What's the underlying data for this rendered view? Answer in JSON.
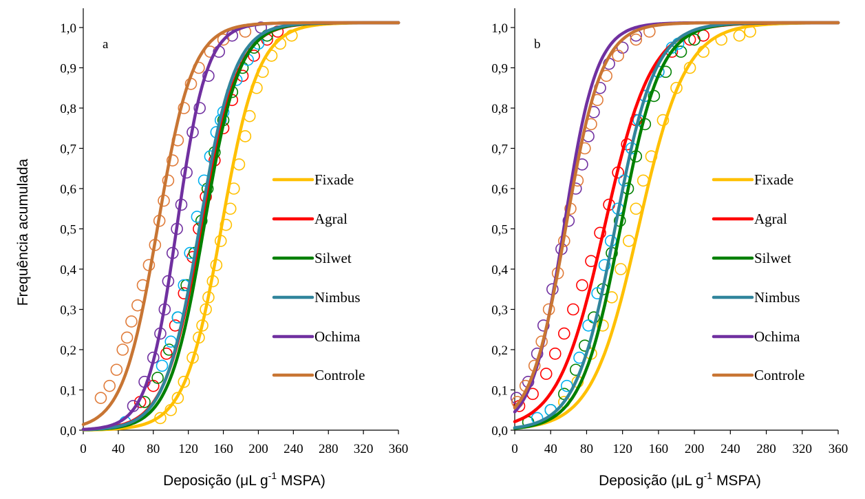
{
  "chart_data": [
    {
      "type": "scatter",
      "panel_label": "a",
      "xlabel": "Deposição (μL g-1 MSPA)",
      "xlabel_parts": [
        "Deposição (μL g",
        "-1",
        " MSPA)"
      ],
      "ylabel": "Frequência acumulada",
      "xlim": [
        0,
        360
      ],
      "ylim": [
        0,
        1.0
      ],
      "xticks": [
        "0",
        "40",
        "80",
        "120",
        "160",
        "200",
        "240",
        "280",
        "320",
        "360"
      ],
      "yticks": [
        "0,0",
        "0,1",
        "0,2",
        "0,3",
        "0,4",
        "0,5",
        "0,6",
        "0,7",
        "0,8",
        "0,9",
        "1,0"
      ],
      "grid": false,
      "legend_placement": "center-right",
      "series": [
        {
          "name": "Fixade",
          "color": "#FFC000",
          "marker_color": "#FFC000",
          "center": 158,
          "scale": 21,
          "points": [
            [
              88,
              0.03
            ],
            [
              100,
              0.05
            ],
            [
              108,
              0.08
            ],
            [
              115,
              0.12
            ],
            [
              125,
              0.18
            ],
            [
              132,
              0.23
            ],
            [
              136,
              0.26
            ],
            [
              140,
              0.3
            ],
            [
              143,
              0.33
            ],
            [
              148,
              0.37
            ],
            [
              152,
              0.41
            ],
            [
              157,
              0.47
            ],
            [
              163,
              0.51
            ],
            [
              168,
              0.55
            ],
            [
              172,
              0.6
            ],
            [
              178,
              0.66
            ],
            [
              185,
              0.73
            ],
            [
              190,
              0.78
            ],
            [
              198,
              0.85
            ],
            [
              205,
              0.89
            ],
            [
              215,
              0.93
            ],
            [
              225,
              0.96
            ],
            [
              238,
              0.98
            ]
          ]
        },
        {
          "name": "Agral",
          "color": "#FF0000",
          "marker_color": "#FF0000",
          "center": 135,
          "scale": 21,
          "points": [
            [
              65,
              0.07
            ],
            [
              80,
              0.11
            ],
            [
              95,
              0.19
            ],
            [
              105,
              0.26
            ],
            [
              115,
              0.34
            ],
            [
              125,
              0.43
            ],
            [
              132,
              0.5
            ],
            [
              140,
              0.58
            ],
            [
              150,
              0.67
            ],
            [
              160,
              0.75
            ],
            [
              170,
              0.82
            ],
            [
              182,
              0.88
            ],
            [
              195,
              0.93
            ],
            [
              210,
              0.97
            ],
            [
              222,
              0.99
            ]
          ]
        },
        {
          "name": "Silwet",
          "color": "#008000",
          "marker_color": "#008000",
          "center": 138,
          "scale": 20,
          "points": [
            [
              70,
              0.07
            ],
            [
              85,
              0.13
            ],
            [
              98,
              0.2
            ],
            [
              108,
              0.28
            ],
            [
              118,
              0.36
            ],
            [
              127,
              0.44
            ],
            [
              135,
              0.52
            ],
            [
              142,
              0.6
            ],
            [
              150,
              0.69
            ],
            [
              160,
              0.77
            ],
            [
              170,
              0.84
            ],
            [
              182,
              0.9
            ],
            [
              195,
              0.95
            ],
            [
              210,
              0.98
            ]
          ]
        },
        {
          "name": "Nimbus",
          "color": "#31859C",
          "marker_color": "#00B0F0",
          "center": 133,
          "scale": 20,
          "points": [
            [
              48,
              0.02
            ],
            [
              90,
              0.16
            ],
            [
              100,
              0.22
            ],
            [
              108,
              0.28
            ],
            [
              115,
              0.36
            ],
            [
              122,
              0.44
            ],
            [
              130,
              0.53
            ],
            [
              138,
              0.62
            ],
            [
              145,
              0.68
            ],
            [
              152,
              0.74
            ],
            [
              157,
              0.77
            ],
            [
              160,
              0.79
            ],
            [
              175,
              0.87
            ],
            [
              188,
              0.92
            ],
            [
              200,
              0.96
            ]
          ]
        },
        {
          "name": "Ochima",
          "color": "#7030A0",
          "marker_color": "#7030A0",
          "center": 107,
          "scale": 17,
          "points": [
            [
              57,
              0.06
            ],
            [
              70,
              0.12
            ],
            [
              80,
              0.18
            ],
            [
              88,
              0.24
            ],
            [
              93,
              0.3
            ],
            [
              97,
              0.37
            ],
            [
              102,
              0.44
            ],
            [
              107,
              0.5
            ],
            [
              112,
              0.56
            ],
            [
              118,
              0.64
            ],
            [
              125,
              0.74
            ],
            [
              133,
              0.8
            ],
            [
              143,
              0.88
            ],
            [
              155,
              0.94
            ],
            [
              170,
              0.98
            ],
            [
              203,
              1.0
            ]
          ]
        },
        {
          "name": "Controle",
          "color": "#C87533",
          "marker_color": "#E07B39",
          "center": 85,
          "scale": 20,
          "points": [
            [
              20,
              0.08
            ],
            [
              30,
              0.11
            ],
            [
              38,
              0.15
            ],
            [
              45,
              0.2
            ],
            [
              50,
              0.23
            ],
            [
              55,
              0.27
            ],
            [
              62,
              0.31
            ],
            [
              68,
              0.36
            ],
            [
              75,
              0.41
            ],
            [
              82,
              0.46
            ],
            [
              87,
              0.52
            ],
            [
              92,
              0.57
            ],
            [
              97,
              0.62
            ],
            [
              102,
              0.67
            ],
            [
              108,
              0.72
            ],
            [
              115,
              0.8
            ],
            [
              123,
              0.86
            ],
            [
              132,
              0.9
            ],
            [
              145,
              0.94
            ],
            [
              160,
              0.97
            ],
            [
              185,
              0.99
            ]
          ]
        }
      ]
    },
    {
      "type": "scatter",
      "panel_label": "b",
      "xlabel": "Deposição (μL g-1 MSPA)",
      "xlabel_parts": [
        "Deposição (μL g",
        "-1",
        " MSPA)"
      ],
      "ylabel": "",
      "xlim": [
        0,
        360
      ],
      "ylim": [
        0,
        1.0
      ],
      "xticks": [
        "0",
        "40",
        "80",
        "120",
        "160",
        "200",
        "240",
        "280",
        "320",
        "360"
      ],
      "yticks": [
        "0,0",
        "0,1",
        "0,2",
        "0,3",
        "0,4",
        "0,5",
        "0,6",
        "0,7",
        "0,8",
        "0,9",
        "1,0"
      ],
      "grid": false,
      "legend_placement": "center-right",
      "series": [
        {
          "name": "Fixade",
          "color": "#FFC000",
          "marker_color": "#FFC000",
          "center": 138,
          "scale": 26,
          "points": [
            [
              55,
              0.07
            ],
            [
              70,
              0.12
            ],
            [
              85,
              0.19
            ],
            [
              98,
              0.26
            ],
            [
              108,
              0.33
            ],
            [
              118,
              0.4
            ],
            [
              127,
              0.47
            ],
            [
              135,
              0.55
            ],
            [
              143,
              0.62
            ],
            [
              152,
              0.68
            ],
            [
              165,
              0.77
            ],
            [
              180,
              0.85
            ],
            [
              195,
              0.9
            ],
            [
              210,
              0.94
            ],
            [
              230,
              0.97
            ],
            [
              250,
              0.98
            ],
            [
              262,
              0.99
            ]
          ]
        },
        {
          "name": "Agral",
          "color": "#FF0000",
          "marker_color": "#FF0000",
          "center": 100,
          "scale": 26,
          "points": [
            [
              5,
              0.06
            ],
            [
              20,
              0.09
            ],
            [
              35,
              0.14
            ],
            [
              45,
              0.19
            ],
            [
              55,
              0.24
            ],
            [
              65,
              0.3
            ],
            [
              75,
              0.36
            ],
            [
              85,
              0.42
            ],
            [
              95,
              0.49
            ],
            [
              105,
              0.56
            ],
            [
              115,
              0.64
            ],
            [
              125,
              0.71
            ],
            [
              135,
              0.77
            ],
            [
              145,
              0.83
            ],
            [
              160,
              0.89
            ],
            [
              175,
              0.94
            ],
            [
              195,
              0.97
            ],
            [
              210,
              0.98
            ]
          ]
        },
        {
          "name": "Silwet",
          "color": "#008000",
          "marker_color": "#008000",
          "center": 118,
          "scale": 22,
          "points": [
            [
              15,
              0.02
            ],
            [
              40,
              0.05
            ],
            [
              55,
              0.09
            ],
            [
              68,
              0.15
            ],
            [
              78,
              0.21
            ],
            [
              88,
              0.28
            ],
            [
              98,
              0.35
            ],
            [
              108,
              0.44
            ],
            [
              117,
              0.52
            ],
            [
              126,
              0.6
            ],
            [
              135,
              0.68
            ],
            [
              145,
              0.76
            ],
            [
              155,
              0.83
            ],
            [
              168,
              0.89
            ],
            [
              185,
              0.94
            ],
            [
              200,
              0.97
            ]
          ]
        },
        {
          "name": "Nimbus",
          "color": "#31859C",
          "marker_color": "#00B0F0",
          "center": 112,
          "scale": 22,
          "points": [
            [
              25,
              0.03
            ],
            [
              40,
              0.05
            ],
            [
              58,
              0.11
            ],
            [
              72,
              0.18
            ],
            [
              82,
              0.26
            ],
            [
              92,
              0.34
            ],
            [
              100,
              0.41
            ],
            [
              107,
              0.47
            ],
            [
              115,
              0.55
            ],
            [
              122,
              0.62
            ],
            [
              130,
              0.7
            ],
            [
              138,
              0.77
            ],
            [
              145,
              0.83
            ],
            [
              160,
              0.89
            ],
            [
              175,
              0.95
            ],
            [
              182,
              0.96
            ]
          ]
        },
        {
          "name": "Ochima",
          "color": "#7030A0",
          "marker_color": "#7030A0",
          "center": 55,
          "scale": 18,
          "points": [
            [
              2,
              0.08
            ],
            [
              15,
              0.12
            ],
            [
              25,
              0.19
            ],
            [
              32,
              0.26
            ],
            [
              42,
              0.35
            ],
            [
              52,
              0.45
            ],
            [
              60,
              0.52
            ],
            [
              68,
              0.6
            ],
            [
              75,
              0.66
            ],
            [
              82,
              0.73
            ],
            [
              88,
              0.79
            ],
            [
              95,
              0.85
            ],
            [
              105,
              0.91
            ],
            [
              120,
              0.95
            ],
            [
              135,
              0.98
            ]
          ]
        },
        {
          "name": "Controle",
          "color": "#C87533",
          "marker_color": "#E07B39",
          "center": 57,
          "scale": 20,
          "points": [
            [
              3,
              0.07
            ],
            [
              12,
              0.11
            ],
            [
              22,
              0.16
            ],
            [
              30,
              0.22
            ],
            [
              38,
              0.3
            ],
            [
              48,
              0.39
            ],
            [
              55,
              0.47
            ],
            [
              62,
              0.55
            ],
            [
              70,
              0.62
            ],
            [
              78,
              0.7
            ],
            [
              85,
              0.76
            ],
            [
              92,
              0.82
            ],
            [
              102,
              0.88
            ],
            [
              115,
              0.93
            ],
            [
              135,
              0.97
            ],
            [
              150,
              0.99
            ]
          ]
        }
      ]
    }
  ]
}
